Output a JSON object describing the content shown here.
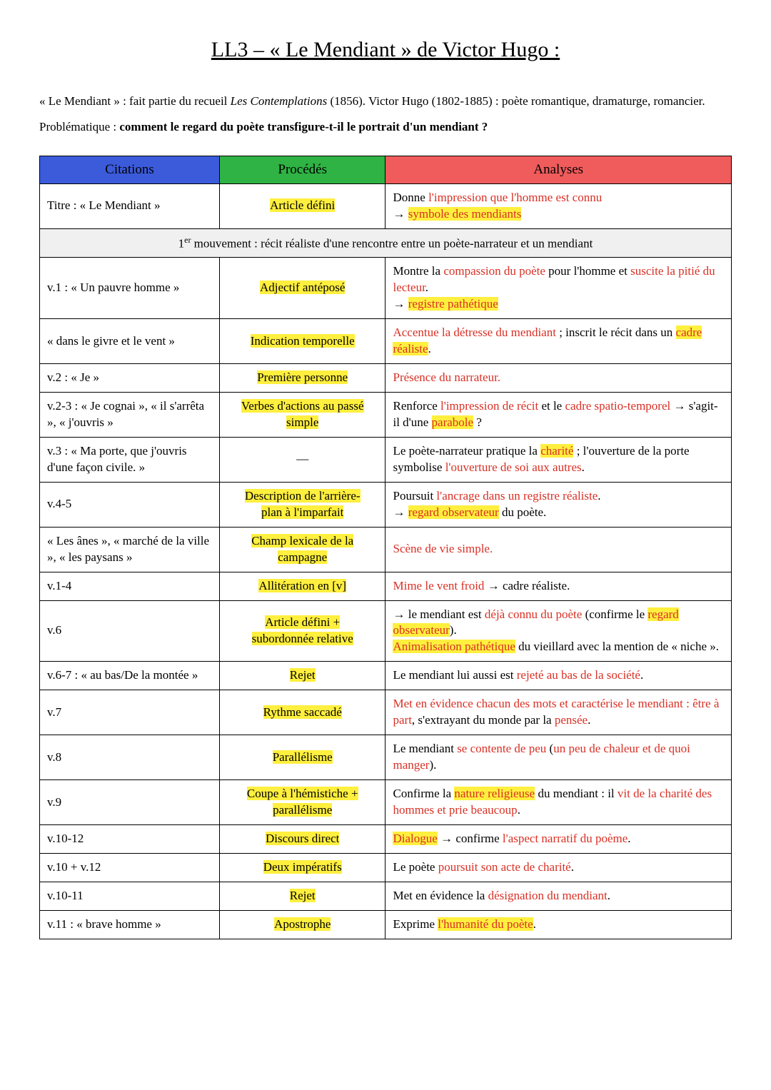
{
  "title": "LL3 – « Le Mendiant » de Victor Hugo :",
  "intro_html": "« Le Mendiant » : fait partie du recueil <em>Les Contemplations</em> (1856). Victor Hugo (1802-1885) : poète romantique, dramaturge, romancier.",
  "problematique_label": "Problématique : ",
  "problematique_strong": "comment le regard du poète transfigure-t-il le portrait d'un mendiant ?",
  "headers": {
    "citations": "Citations",
    "procedes": "Procédés",
    "analyses": "Analyses"
  },
  "header_colors": {
    "citations": "#3b5bdb",
    "procedes": "#2fb344",
    "analyses": "#f05b5b"
  },
  "highlight_color": "#ffef3e",
  "red_text_color": "#d93025",
  "section_bg": "#f0f0f0",
  "rows": [
    {
      "citation": "Titre : « Le Mendiant »",
      "procede": "<span class='hl'>Article défini</span>",
      "analyse": "Donne <span class='red'>l'impression que l'homme est connu</span><br>→ <span class='hl red'>symbole des mendiants</span>"
    },
    {
      "section": "1<sup>er</sup> mouvement : récit réaliste d'une rencontre entre un poète-narrateur et un mendiant"
    },
    {
      "citation": "v.1 : « Un pauvre homme »",
      "procede": "<span class='hl'>Adjectif antéposé</span>",
      "analyse": "Montre la <span class='red'>compassion du poète</span> pour l'homme et <span class='red'>suscite la pitié du lecteur</span>.<br>→ <span class='hl red'>registre pathétique</span>"
    },
    {
      "citation": "« dans le givre et le vent »",
      "procede": "<span class='hl'>Indication temporelle</span>",
      "analyse": "<span class='red'>Accentue la détresse du mendiant</span> ; inscrit le récit dans un <span class='hl red'>cadre réaliste</span>."
    },
    {
      "citation": "v.2 : « Je »",
      "procede": "<span class='hl'>Première personne</span>",
      "analyse": "<span class='red'>Présence du narrateur.</span>"
    },
    {
      "citation": "v.2-3 : « Je cognai », « il s'arrêta », « j'ouvris »",
      "procede": "<span class='hl'>Verbes d'actions au passé</span><br><span class='hl'>simple</span>",
      "analyse": "Renforce <span class='red'>l'impression de récit</span> et le <span class='red'>cadre spatio-temporel</span> → s'agit-il d'une <span class='hl red'>parabole</span> ?"
    },
    {
      "citation": "v.3 : « Ma porte, que j'ouvris d'une façon civile. »",
      "procede": "—",
      "analyse": "Le poète-narrateur pratique la <span class='hl red'>charité</span> ; l'ouverture de la porte symbolise <span class='red'>l'ouverture de soi aux autres</span>."
    },
    {
      "citation": "v.4-5",
      "procede": "<span class='hl'>Description de l'arrière-</span><br><span class='hl'>plan à l'imparfait</span>",
      "analyse": "Poursuit <span class='red'>l'ancrage dans un registre réaliste</span>.<br>→ <span class='hl red'>regard observateur</span> du poète."
    },
    {
      "citation": "« Les ânes », « marché de la ville », « les paysans »",
      "procede": "<span class='hl'>Champ lexicale de la</span><br><span class='hl'>campagne</span>",
      "analyse": "<span class='red'>Scène de vie simple.</span>"
    },
    {
      "citation": "v.1-4",
      "procede": "<span class='hl'>Allitération en [v]</span>",
      "analyse": "<span class='red'>Mime le vent froid</span> → cadre réaliste."
    },
    {
      "citation": "v.6",
      "procede": "<span class='hl'>Article défini +</span><br><span class='hl'>subordonnée relative</span>",
      "analyse": "→ le mendiant est <span class='red'>déjà connu du poète</span> (confirme le <span class='hl red'>regard observateur</span>).<br><span class='hl red'>Animalisation pathétique</span> du vieillard avec la mention de « niche »."
    },
    {
      "citation": "v.6-7 : « au bas/De la montée »",
      "procede": "<span class='hl'>Rejet</span>",
      "analyse": "Le mendiant lui aussi est <span class='red'>rejeté au bas de la société</span>."
    },
    {
      "citation": "v.7",
      "procede": "<span class='hl'>Rythme saccadé</span>",
      "analyse": "<span class='red'>Met en évidence chacun des mots et caractérise le mendiant : être à part</span>, s'extrayant du monde par la <span class='red'>pensée</span>."
    },
    {
      "citation": "v.8",
      "procede": "<span class='hl'>Parallélisme</span>",
      "analyse": "Le mendiant <span class='red'>se contente de peu</span> (<span class='red'>un peu de chaleur et de quoi manger</span>)."
    },
    {
      "citation": "v.9",
      "procede": "<span class='hl'>Coupe à l'hémistiche +</span><br><span class='hl'>parallélisme</span>",
      "analyse": "Confirme la <span class='hl red'>nature religieuse</span> du mendiant : il <span class='red'>vit de la charité des hommes et prie beaucoup</span>."
    },
    {
      "citation": "v.10-12",
      "procede": "<span class='hl'>Discours direct</span>",
      "analyse": "<span class='hl red'>Dialogue</span> → confirme <span class='red'>l'aspect narratif du poème</span>."
    },
    {
      "citation": "v.10 + v.12",
      "procede": "<span class='hl'>Deux impératifs</span>",
      "analyse": "Le poète <span class='red'>poursuit son acte de charité</span>."
    },
    {
      "citation": "v.10-11",
      "procede": "<span class='hl'>Rejet</span>",
      "analyse": "Met en évidence la <span class='red'>désignation du mendiant</span>."
    },
    {
      "citation": "v.11 : « brave homme »",
      "procede": "<span class='hl'>Apostrophe</span>",
      "analyse": "Exprime <span class='hl red'>l'humanité du poète</span>."
    }
  ]
}
